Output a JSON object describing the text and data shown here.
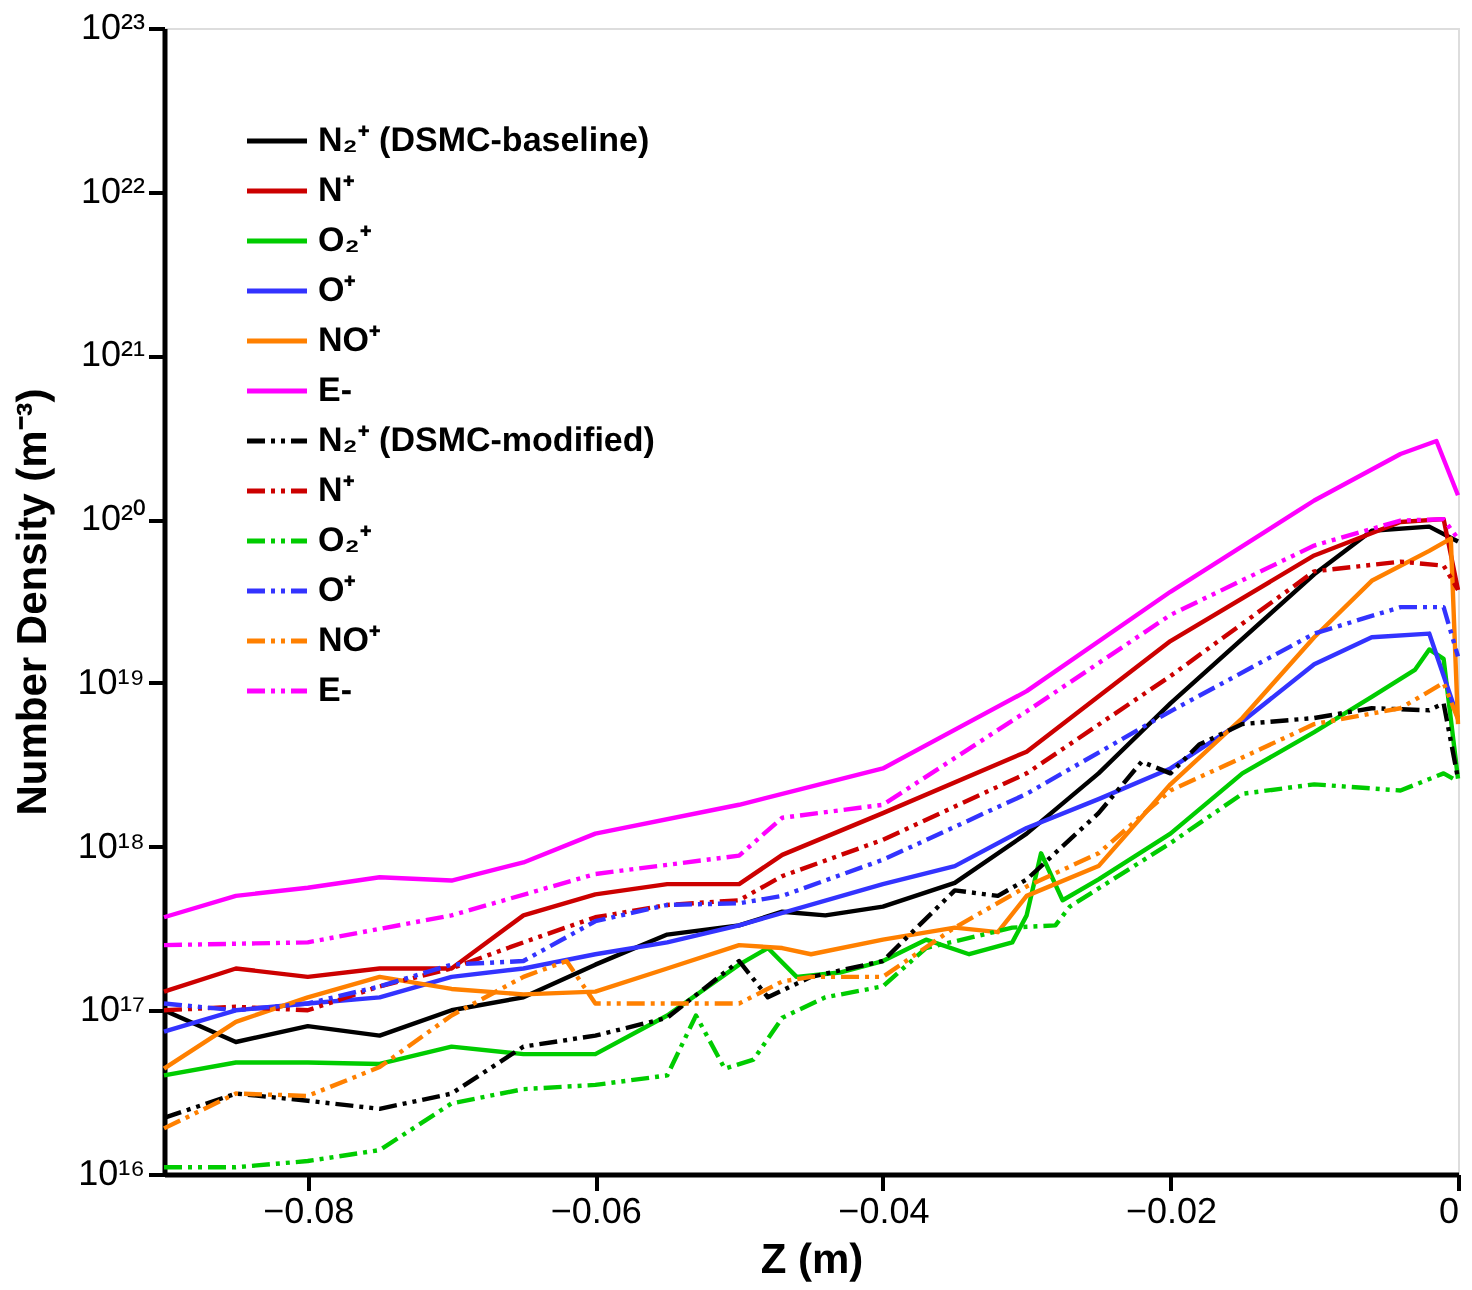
{
  "chart_data": {
    "type": "line",
    "xlabel": "Z (m)",
    "ylabel": "Number Density (m⁻³)",
    "log": true,
    "grid": false,
    "legend": "top left",
    "marker": "none",
    "xlim": [
      -0.09,
      0
    ],
    "xticks": [
      -0.08,
      -0.06,
      -0.04,
      -0.02,
      0
    ],
    "ylim": [
      1e+16,
      1e+23
    ],
    "yticks": [
      {
        "value": 1e+16,
        "label": "10¹⁶"
      },
      {
        "value": 1e+17,
        "label": "10¹⁷"
      },
      {
        "value": 1e+18,
        "label": "10¹⁸"
      },
      {
        "value": 1e+19,
        "label": "10¹⁹"
      },
      {
        "value": 1e+20,
        "label": "10²⁰"
      },
      {
        "value": 1e+21,
        "label": "10²¹"
      },
      {
        "value": 1e+22,
        "label": "10²²"
      },
      {
        "value": 1e+23,
        "label": "10²³"
      }
    ],
    "series": [
      {
        "name": "N₂⁺ (DSMC-baseline)",
        "color": "#000000",
        "line_style": "solid",
        "x": [
          -0.09,
          -0.085,
          -0.08,
          -0.075,
          -0.07,
          -0.065,
          -0.06,
          -0.055,
          -0.05,
          -0.047,
          -0.044,
          -0.04,
          -0.035,
          -0.03,
          -0.025,
          -0.02,
          -0.01,
          -0.006,
          -0.002,
          0
        ],
        "values": [
          1e+17,
          6.4e+16,
          8e+16,
          7e+16,
          1e+17,
          1.2e+17,
          1.9e+17,
          2.9e+17,
          3.3e+17,
          4e+17,
          3.8e+17,
          4.3e+17,
          6e+17,
          1.2e+18,
          2.8e+18,
          7.5e+18,
          4.6e+19,
          8.5e+19,
          9e+19,
          7.3e+19
        ]
      },
      {
        "name": "N⁺",
        "color": "#cc0000",
        "line_style": "solid",
        "x": [
          -0.09,
          -0.085,
          -0.08,
          -0.075,
          -0.07,
          -0.065,
          -0.06,
          -0.055,
          -0.05,
          -0.047,
          -0.04,
          -0.03,
          -0.02,
          -0.01,
          -0.004,
          -0.001,
          0
        ],
        "values": [
          1.3e+17,
          1.8e+17,
          1.6e+17,
          1.8e+17,
          1.8e+17,
          3.8e+17,
          5.1e+17,
          5.9e+17,
          5.9e+17,
          8.9e+17,
          1.6e+18,
          3.8e+18,
          1.8e+19,
          6e+19,
          9.6e+19,
          1e+20,
          3.7e+19
        ]
      },
      {
        "name": "O₂⁺",
        "color": "#00cc00",
        "line_style": "solid",
        "x": [
          -0.09,
          -0.085,
          -0.08,
          -0.075,
          -0.07,
          -0.065,
          -0.06,
          -0.055,
          -0.05,
          -0.048,
          -0.046,
          -0.043,
          -0.04,
          -0.037,
          -0.034,
          -0.031,
          -0.03,
          -0.029,
          -0.0275,
          -0.025,
          -0.02,
          -0.015,
          -0.01,
          -0.006,
          -0.003,
          -0.002,
          -0.001,
          0
        ],
        "values": [
          4e+16,
          4.8e+16,
          4.8e+16,
          4.7e+16,
          6e+16,
          5.4e+16,
          5.4e+16,
          9.3e+16,
          1.9e+17,
          2.4e+17,
          1.6e+17,
          1.7e+17,
          2e+17,
          2.7e+17,
          2.2e+17,
          2.6e+17,
          3.8e+17,
          9.1e+17,
          4.7e+17,
          6.3e+17,
          1.2e+18,
          2.8e+18,
          5e+18,
          8.2e+18,
          1.2e+19,
          1.6e+19,
          1.4e+19,
          2.6e+18
        ]
      },
      {
        "name": "O⁺",
        "color": "#3333ff",
        "line_style": "solid",
        "x": [
          -0.09,
          -0.085,
          -0.08,
          -0.075,
          -0.07,
          -0.065,
          -0.06,
          -0.055,
          -0.05,
          -0.04,
          -0.035,
          -0.03,
          -0.025,
          -0.02,
          -0.015,
          -0.01,
          -0.006,
          -0.002,
          0
        ],
        "values": [
          7.4e+16,
          1e+17,
          1.1e+17,
          1.2e+17,
          1.6e+17,
          1.8e+17,
          2.2e+17,
          2.6e+17,
          3.3e+17,
          5.9e+17,
          7.6e+17,
          1.3e+18,
          1.95e+18,
          3e+18,
          5.8e+18,
          1.3e+19,
          1.9e+19,
          2e+19,
          6.1e+18
        ]
      },
      {
        "name": "NO⁺",
        "color": "#ff8000",
        "line_style": "solid",
        "x": [
          -0.09,
          -0.085,
          -0.08,
          -0.075,
          -0.07,
          -0.065,
          -0.06,
          -0.055,
          -0.05,
          -0.047,
          -0.045,
          -0.04,
          -0.035,
          -0.032,
          -0.03,
          -0.025,
          -0.02,
          -0.015,
          -0.01,
          -0.006,
          -0.002,
          -0.0005,
          0
        ],
        "values": [
          4.4e+16,
          8.5e+16,
          1.2e+17,
          1.6e+17,
          1.35e+17,
          1.25e+17,
          1.3e+17,
          1.8e+17,
          2.5e+17,
          2.4e+17,
          2.2e+17,
          2.7e+17,
          3.2e+17,
          3e+17,
          5e+17,
          7.6e+17,
          2.4e+18,
          6.1e+18,
          1.9e+19,
          4.2e+19,
          6.4e+19,
          7.6e+19,
          5.6e+18
        ]
      },
      {
        "name": "E-",
        "color": "#ff00ff",
        "line_style": "solid",
        "x": [
          -0.09,
          -0.085,
          -0.08,
          -0.075,
          -0.07,
          -0.065,
          -0.06,
          -0.05,
          -0.04,
          -0.03,
          -0.02,
          -0.01,
          -0.004,
          -0.0015,
          0
        ],
        "values": [
          3.7e+17,
          5e+17,
          5.6e+17,
          6.5e+17,
          6.2e+17,
          8e+17,
          1.2e+18,
          1.8e+18,
          3e+18,
          8.9e+18,
          3.6e+19,
          1.3e+20,
          2.5e+20,
          3e+20,
          1.4e+20
        ]
      },
      {
        "name": "N₂⁺ (DSMC-modified)",
        "color": "#000000",
        "line_style": "dashed",
        "x": [
          -0.09,
          -0.085,
          -0.08,
          -0.075,
          -0.07,
          -0.065,
          -0.06,
          -0.055,
          -0.05,
          -0.048,
          -0.045,
          -0.04,
          -0.035,
          -0.032,
          -0.03,
          -0.025,
          -0.022,
          -0.02,
          -0.018,
          -0.015,
          -0.01,
          -0.006,
          -0.002,
          -0.001,
          0
        ],
        "values": [
          2.2e+16,
          3.1e+16,
          2.8e+16,
          2.5e+16,
          3.1e+16,
          6e+16,
          7e+16,
          9e+16,
          2e+17,
          1.2e+17,
          1.6e+17,
          2e+17,
          5.4e+17,
          5e+17,
          6.3e+17,
          1.6e+18,
          3.3e+18,
          2.8e+18,
          4.2e+18,
          5.6e+18,
          6.1e+18,
          7e+18,
          6.8e+18,
          7.5e+18,
          2.6e+18
        ]
      },
      {
        "name": "N⁺",
        "color": "#cc0000",
        "line_style": "dashed",
        "x": [
          -0.09,
          -0.085,
          -0.08,
          -0.075,
          -0.07,
          -0.065,
          -0.06,
          -0.055,
          -0.05,
          -0.047,
          -0.04,
          -0.03,
          -0.02,
          -0.01,
          -0.004,
          -0.001,
          0
        ],
        "values": [
          1e+17,
          1.05e+17,
          1e+17,
          1.4e+17,
          1.8e+17,
          2.6e+17,
          3.7e+17,
          4.4e+17,
          4.7e+17,
          6.6e+17,
          1.1e+18,
          2.8e+18,
          1.1e+19,
          4.8e+19,
          5.5e+19,
          5.2e+19,
          3.7e+19
        ]
      },
      {
        "name": "O₂⁺",
        "color": "#00cc00",
        "line_style": "dashed",
        "x": [
          -0.09,
          -0.085,
          -0.08,
          -0.075,
          -0.07,
          -0.065,
          -0.06,
          -0.055,
          -0.053,
          -0.051,
          -0.049,
          -0.047,
          -0.044,
          -0.04,
          -0.037,
          -0.033,
          -0.031,
          -0.028,
          -0.027,
          -0.02,
          -0.015,
          -0.01,
          -0.004,
          -0.001,
          0
        ],
        "values": [
          1.1e+16,
          1.1e+16,
          1.2e+16,
          1.4e+16,
          2.7e+16,
          3.3e+16,
          3.5e+16,
          4e+16,
          9.3e+16,
          4.4e+16,
          5e+16,
          9e+16,
          1.2e+17,
          1.4e+17,
          2.4e+17,
          2.9e+17,
          3.2e+17,
          3.3e+17,
          4.3e+17,
          1.05e+18,
          2.1e+18,
          2.4e+18,
          2.2e+18,
          2.8e+18,
          2.5e+18
        ]
      },
      {
        "name": "O⁺",
        "color": "#3333ff",
        "line_style": "dashed",
        "x": [
          -0.09,
          -0.085,
          -0.08,
          -0.075,
          -0.07,
          -0.065,
          -0.06,
          -0.055,
          -0.05,
          -0.047,
          -0.04,
          -0.03,
          -0.02,
          -0.01,
          -0.004,
          -0.001,
          0
        ],
        "values": [
          1.1e+17,
          1e+17,
          1.1e+17,
          1.4e+17,
          1.9e+17,
          2e+17,
          3.5e+17,
          4.4e+17,
          4.5e+17,
          5e+17,
          8.3e+17,
          2.1e+18,
          6.7e+18,
          2e+19,
          2.9e+19,
          2.9e+19,
          1.45e+19
        ]
      },
      {
        "name": "NO⁺",
        "color": "#ff8000",
        "line_style": "dashed",
        "x": [
          -0.09,
          -0.085,
          -0.08,
          -0.075,
          -0.07,
          -0.065,
          -0.062,
          -0.06,
          -0.055,
          -0.05,
          -0.047,
          -0.045,
          -0.04,
          -0.035,
          -0.03,
          -0.025,
          -0.02,
          -0.015,
          -0.01,
          -0.004,
          -0.001,
          0
        ],
        "values": [
          1.9e+16,
          3.1e+16,
          3e+16,
          4.5e+16,
          9.3e+16,
          1.6e+17,
          2e+17,
          1.1e+17,
          1.1e+17,
          1.1e+17,
          1.5e+17,
          1.6e+17,
          1.6e+17,
          3.2e+17,
          5.7e+17,
          9.1e+17,
          2.2e+18,
          3.5e+18,
          5.6e+18,
          7e+18,
          1e+19,
          6e+18
        ]
      },
      {
        "name": "E-",
        "color": "#ff00ff",
        "line_style": "dashed",
        "x": [
          -0.09,
          -0.08,
          -0.07,
          -0.06,
          -0.05,
          -0.047,
          -0.04,
          -0.03,
          -0.02,
          -0.01,
          -0.004,
          -0.001,
          0
        ],
        "values": [
          2.5e+17,
          2.6e+17,
          3.8e+17,
          6.8e+17,
          8.8e+17,
          1.5e+18,
          1.8e+18,
          6.7e+18,
          2.6e+19,
          6.9e+19,
          9.8e+19,
          1e+20,
          7.6e+19
        ]
      }
    ]
  }
}
